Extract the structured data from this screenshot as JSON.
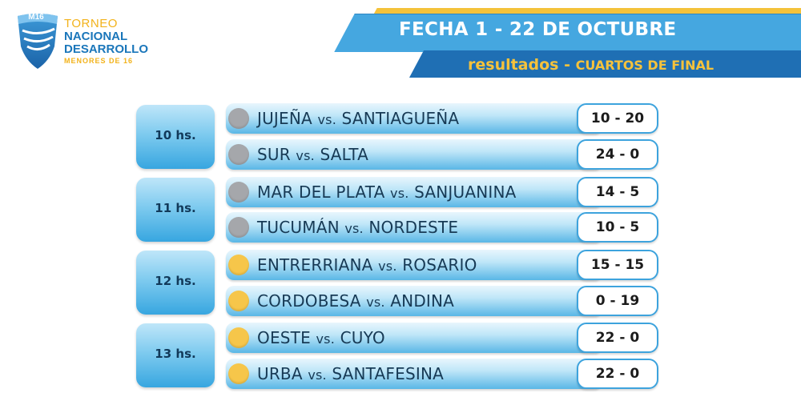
{
  "logo": {
    "badge": "M16",
    "line1": "TORNEO",
    "line2": "NACIONAL",
    "line3": "DESARROLLO",
    "line4": "MENORES DE 16"
  },
  "header": {
    "title": "FECHA 1 - 22 DE OCTUBRE",
    "subtitle_a": "resultados - ",
    "subtitle_b": "CUARTOS DE FINAL"
  },
  "colors": {
    "dot_gray": "#a5a7ab",
    "dot_yellow": "#f6c64a",
    "accent_blue": "#45a7e0",
    "accent_dark_blue": "#1f6fb4",
    "accent_yellow": "#f6c23b"
  },
  "slots": [
    {
      "time": "10 hs.",
      "dot": "gray",
      "matches": [
        {
          "home": "JUJEÑA",
          "vs": "vs.",
          "away": "SANTIAGUEÑA",
          "score": "10 - 20"
        },
        {
          "home": "SUR",
          "vs": "vs.",
          "away": "SALTA",
          "score": "24 - 0"
        }
      ]
    },
    {
      "time": "11 hs.",
      "dot": "gray",
      "matches": [
        {
          "home": "MAR DEL PLATA",
          "vs": "vs.",
          "away": "SANJUANINA",
          "score": "14 - 5"
        },
        {
          "home": "TUCUMÁN",
          "vs": "vs.",
          "away": "NORDESTE",
          "score": "10 - 5"
        }
      ]
    },
    {
      "time": "12 hs.",
      "dot": "yellow",
      "matches": [
        {
          "home": "ENTRERRIANA",
          "vs": "vs.",
          "away": "ROSARIO",
          "score": "15 - 15"
        },
        {
          "home": "CORDOBESA",
          "vs": "vs.",
          "away": "ANDINA",
          "score": "0 - 19"
        }
      ]
    },
    {
      "time": "13 hs.",
      "dot": "yellow",
      "matches": [
        {
          "home": "OESTE",
          "vs": "vs.",
          "away": "CUYO",
          "score": "22 - 0"
        },
        {
          "home": "URBA",
          "vs": "vs.",
          "away": "SANTAFESINA",
          "score": "22 - 0"
        }
      ]
    }
  ]
}
